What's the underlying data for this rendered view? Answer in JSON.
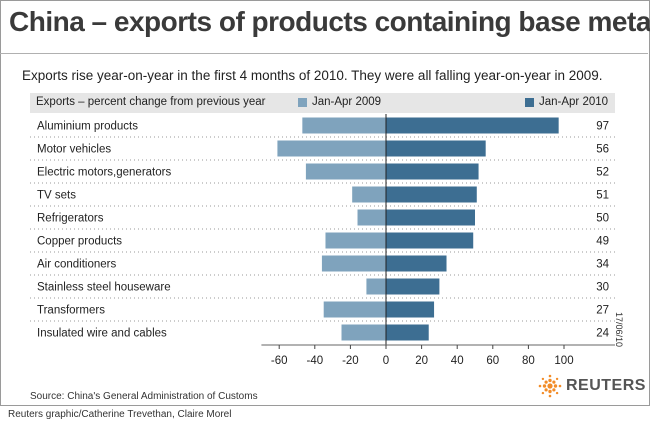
{
  "title": "China – exports of products containing base metals",
  "subtitle": "Exports rise year-on-year in the first 4 months of 2010. They were all falling year-on-year in 2009.",
  "colors": {
    "series_2009": "#7fa3bd",
    "series_2010": "#3d6e92"
  },
  "chart_data": {
    "type": "bar",
    "orientation": "horizontal",
    "header_label": "Exports – percent change from previous year",
    "categories": [
      "Aluminium products",
      "Motor vehicles",
      "Electric motors,generators",
      "TV sets",
      "Refrigerators",
      "Copper products",
      "Air conditioners",
      "Stainless steel houseware",
      "Transformers",
      "Insulated wire and cables"
    ],
    "series": [
      {
        "name": "Jan-Apr 2009",
        "values": [
          -47,
          -61,
          -45,
          -19,
          -16,
          -34,
          -36,
          -11,
          -35,
          -25
        ]
      },
      {
        "name": "Jan-Apr 2010",
        "values": [
          97,
          56,
          52,
          51,
          50,
          49,
          34,
          30,
          27,
          24
        ]
      }
    ],
    "value_labels": [
      "97",
      "56",
      "52",
      "51",
      "50",
      "49",
      "34",
      "30",
      "27",
      "24"
    ],
    "x_ticks": [
      "-60",
      "-40",
      "-20",
      "0",
      "20",
      "40",
      "60",
      "80",
      "100"
    ],
    "xlim": [
      -70,
      110
    ],
    "grid": false,
    "legend": "top"
  },
  "source": "Source: China's General Administration of Customs",
  "credit": "Reuters graphic/Catherine Trevethan, Claire Morel",
  "date_stamp": "17/06/10",
  "logo_text": "REUTERS"
}
